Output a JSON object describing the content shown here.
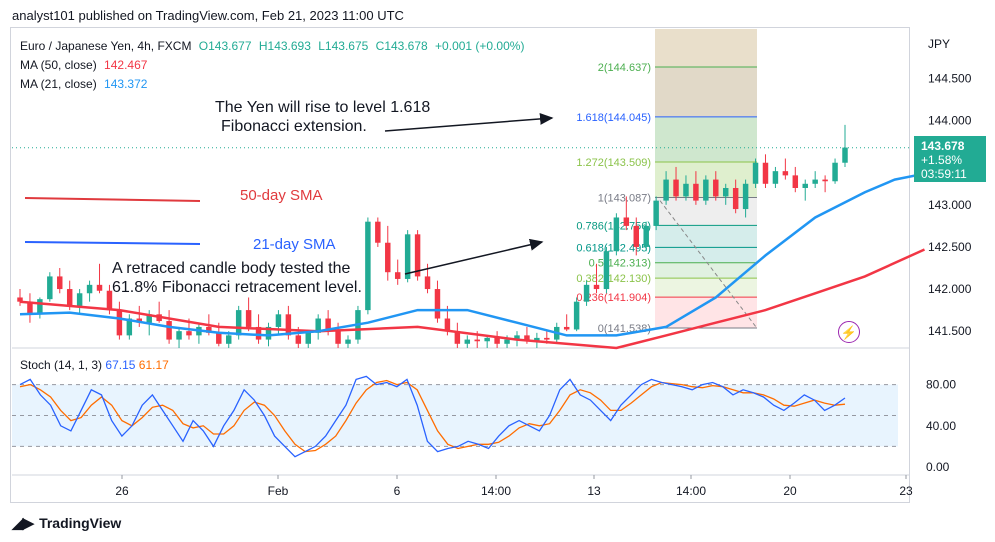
{
  "header": {
    "published_by": "analyst101 published on TradingView.com, Feb 21, 2023 11:00 UTC"
  },
  "legend": {
    "symbol": "Euro / Japanese Yen, 4h, FXCM",
    "open": "O143.677",
    "high": "H143.693",
    "low": "L143.675",
    "close": "C143.678",
    "change": "+0.001 (+0.00%)",
    "ma50_label": "MA (50, close)",
    "ma50_value": "142.467",
    "ma21_label": "MA (21, close)",
    "ma21_value": "143.372"
  },
  "stoch": {
    "label": "Stoch (14, 1, 3)",
    "k": "67.15",
    "d": "61.17"
  },
  "annotations": {
    "yen_rise": [
      "The Yen will rise to level 1.618",
      "Fibonacci extension."
    ],
    "retraced": [
      "A retraced candle body tested the",
      "61.8% Fibonacci retracement level."
    ],
    "sma50": "50-day SMA",
    "sma21": "21-day SMA"
  },
  "price_badge": {
    "price": "143.678",
    "change": "+1.58%",
    "countdown": "03:59:11"
  },
  "footer": {
    "brand": "TradingView"
  },
  "colors": {
    "up": "#22ab94",
    "down": "#f23645",
    "ma50": "#f23645",
    "ma21": "#2196f3",
    "stoch_k": "#2962ff",
    "stoch_d": "#ff6d00",
    "accent": "#9c27b0"
  },
  "chart_data": {
    "type": "candlestick",
    "currency_label": "JPY",
    "y_ticks": [
      "144.500",
      "144.000",
      "143.000",
      "142.500",
      "142.000",
      "141.500"
    ],
    "ylim": [
      141.3,
      145.1
    ],
    "x_ticks": [
      "26",
      "Feb",
      "6",
      "14:00",
      "13",
      "14:00",
      "20",
      "23"
    ],
    "fib_levels": [
      {
        "label": "2(144.637)",
        "ratio": 2,
        "value": 144.637,
        "color": "#4caf50"
      },
      {
        "label": "1.618(144.045)",
        "ratio": 1.618,
        "value": 144.045,
        "color": "#2962ff"
      },
      {
        "label": "1.272(143.509)",
        "ratio": 1.272,
        "value": 143.509,
        "color": "#8bc34a"
      },
      {
        "label": "1(143.087)",
        "ratio": 1,
        "value": 143.087,
        "color": "#787b86"
      },
      {
        "label": "0.786(142.756)",
        "ratio": 0.786,
        "value": 142.756,
        "color": "#089981"
      },
      {
        "label": "0.618(142.495)",
        "ratio": 0.618,
        "value": 142.495,
        "color": "#009688"
      },
      {
        "label": "0.5(142.313)",
        "ratio": 0.5,
        "value": 142.313,
        "color": "#4caf50"
      },
      {
        "label": "0.382(142.130)",
        "ratio": 0.382,
        "value": 142.13,
        "color": "#8bc34a"
      },
      {
        "label": "0.236(141.904)",
        "ratio": 0.236,
        "value": 141.904,
        "color": "#f23645"
      },
      {
        "label": "0(141.538)",
        "ratio": 0,
        "value": 141.538,
        "color": "#787b86"
      }
    ],
    "candles": [
      [
        141.9,
        142.0,
        141.8,
        141.85
      ],
      [
        141.85,
        141.95,
        141.6,
        141.7
      ],
      [
        141.7,
        141.9,
        141.65,
        141.88
      ],
      [
        141.88,
        142.2,
        141.85,
        142.15
      ],
      [
        142.15,
        142.25,
        141.95,
        142.0
      ],
      [
        142.0,
        142.1,
        141.75,
        141.8
      ],
      [
        141.8,
        142.0,
        141.7,
        141.95
      ],
      [
        141.95,
        142.1,
        141.85,
        142.05
      ],
      [
        142.05,
        142.3,
        141.95,
        141.98
      ],
      [
        141.98,
        142.05,
        141.7,
        141.75
      ],
      [
        141.75,
        141.85,
        141.4,
        141.45
      ],
      [
        141.45,
        141.7,
        141.4,
        141.65
      ],
      [
        141.65,
        141.8,
        141.55,
        141.6
      ],
      [
        141.6,
        141.75,
        141.45,
        141.7
      ],
      [
        141.7,
        141.85,
        141.6,
        141.62
      ],
      [
        141.62,
        141.75,
        141.35,
        141.4
      ],
      [
        141.4,
        141.55,
        141.3,
        141.5
      ],
      [
        141.5,
        141.65,
        141.4,
        141.45
      ],
      [
        141.45,
        141.6,
        141.35,
        141.55
      ],
      [
        141.55,
        141.7,
        141.45,
        141.48
      ],
      [
        141.48,
        141.6,
        141.32,
        141.35
      ],
      [
        141.35,
        141.5,
        141.3,
        141.45
      ],
      [
        141.45,
        141.8,
        141.4,
        141.75
      ],
      [
        141.75,
        141.9,
        141.5,
        141.55
      ],
      [
        141.55,
        141.7,
        141.35,
        141.4
      ],
      [
        141.4,
        141.6,
        141.32,
        141.55
      ],
      [
        141.55,
        141.75,
        141.45,
        141.7
      ],
      [
        141.7,
        141.8,
        141.4,
        141.45
      ],
      [
        141.45,
        141.55,
        141.3,
        141.35
      ],
      [
        141.35,
        141.5,
        141.3,
        141.48
      ],
      [
        141.48,
        141.7,
        141.4,
        141.65
      ],
      [
        141.65,
        141.75,
        141.45,
        141.5
      ],
      [
        141.5,
        141.6,
        141.3,
        141.35
      ],
      [
        141.35,
        141.45,
        141.3,
        141.4
      ],
      [
        141.4,
        141.8,
        141.35,
        141.75
      ],
      [
        141.75,
        142.85,
        141.7,
        142.8
      ],
      [
        142.8,
        142.85,
        142.5,
        142.55
      ],
      [
        142.55,
        142.75,
        142.1,
        142.2
      ],
      [
        142.2,
        142.35,
        142.05,
        142.12
      ],
      [
        142.12,
        142.7,
        142.08,
        142.65
      ],
      [
        142.65,
        142.7,
        142.1,
        142.15
      ],
      [
        142.15,
        142.3,
        141.95,
        142.0
      ],
      [
        142.0,
        142.1,
        141.6,
        141.65
      ],
      [
        141.65,
        141.8,
        141.45,
        141.5
      ],
      [
        141.5,
        141.6,
        141.3,
        141.35
      ],
      [
        141.35,
        141.45,
        141.3,
        141.4
      ],
      [
        141.4,
        141.5,
        141.3,
        141.38
      ],
      [
        141.38,
        141.45,
        141.3,
        141.42
      ],
      [
        141.42,
        141.5,
        141.3,
        141.35
      ],
      [
        141.35,
        141.45,
        141.3,
        141.4
      ],
      [
        141.4,
        141.5,
        141.32,
        141.45
      ],
      [
        141.45,
        141.55,
        141.35,
        141.38
      ],
      [
        141.38,
        141.48,
        141.3,
        141.42
      ],
      [
        141.42,
        141.5,
        141.35,
        141.4
      ],
      [
        141.4,
        141.6,
        141.35,
        141.55
      ],
      [
        141.55,
        141.7,
        141.5,
        141.52
      ],
      [
        141.52,
        141.9,
        141.5,
        141.85
      ],
      [
        141.85,
        142.1,
        141.8,
        142.05
      ],
      [
        142.05,
        142.3,
        141.95,
        142.0
      ],
      [
        142.0,
        142.5,
        141.95,
        142.45
      ],
      [
        142.45,
        142.9,
        142.4,
        142.85
      ],
      [
        142.85,
        143.1,
        142.7,
        142.75
      ],
      [
        142.75,
        142.85,
        142.4,
        142.5
      ],
      [
        142.5,
        142.8,
        142.45,
        142.75
      ],
      [
        142.75,
        143.1,
        142.7,
        143.05
      ],
      [
        143.05,
        143.4,
        143.0,
        143.3
      ],
      [
        143.3,
        143.45,
        143.05,
        143.1
      ],
      [
        143.1,
        143.35,
        143.05,
        143.25
      ],
      [
        143.25,
        143.4,
        143.0,
        143.05
      ],
      [
        143.05,
        143.35,
        143.0,
        143.3
      ],
      [
        143.3,
        143.4,
        143.05,
        143.1
      ],
      [
        143.1,
        143.25,
        143.0,
        143.2
      ],
      [
        143.2,
        143.3,
        142.9,
        142.95
      ],
      [
        142.95,
        143.3,
        142.85,
        143.25
      ],
      [
        143.25,
        143.55,
        143.2,
        143.5
      ],
      [
        143.5,
        143.6,
        143.2,
        143.25
      ],
      [
        143.25,
        143.45,
        143.2,
        143.4
      ],
      [
        143.4,
        143.55,
        143.3,
        143.35
      ],
      [
        143.35,
        143.45,
        143.15,
        143.2
      ],
      [
        143.2,
        143.3,
        143.05,
        143.25
      ],
      [
        143.25,
        143.4,
        143.2,
        143.3
      ],
      [
        143.3,
        143.35,
        143.15,
        143.28
      ],
      [
        143.28,
        143.55,
        143.25,
        143.5
      ],
      [
        143.5,
        143.95,
        143.45,
        143.68
      ]
    ],
    "ma21": [
      [
        0,
        141.7
      ],
      [
        5,
        141.72
      ],
      [
        10,
        141.65
      ],
      [
        15,
        141.55
      ],
      [
        20,
        141.48
      ],
      [
        25,
        141.45
      ],
      [
        30,
        141.5
      ],
      [
        35,
        141.6
      ],
      [
        40,
        141.75
      ],
      [
        45,
        141.75
      ],
      [
        50,
        141.6
      ],
      [
        55,
        141.45
      ],
      [
        60,
        141.45
      ],
      [
        65,
        141.55
      ],
      [
        70,
        141.9
      ],
      [
        75,
        142.4
      ],
      [
        80,
        142.85
      ],
      [
        85,
        143.15
      ],
      [
        88,
        143.3
      ],
      [
        91,
        143.37
      ]
    ],
    "ma50": [
      [
        0,
        141.85
      ],
      [
        10,
        141.75
      ],
      [
        20,
        141.55
      ],
      [
        30,
        141.5
      ],
      [
        40,
        141.55
      ],
      [
        50,
        141.4
      ],
      [
        60,
        141.3
      ],
      [
        65,
        141.45
      ],
      [
        70,
        141.6
      ],
      [
        75,
        141.75
      ],
      [
        80,
        141.95
      ],
      [
        85,
        142.15
      ],
      [
        91,
        142.47
      ]
    ],
    "stoch_k": [
      80,
      85,
      70,
      60,
      40,
      35,
      55,
      75,
      70,
      45,
      30,
      40,
      60,
      70,
      55,
      40,
      25,
      45,
      35,
      20,
      40,
      55,
      75,
      65,
      50,
      30,
      20,
      10,
      15,
      20,
      30,
      45,
      60,
      85,
      88,
      80,
      82,
      78,
      85,
      60,
      25,
      15,
      18,
      20,
      25,
      22,
      18,
      30,
      40,
      45,
      40,
      35,
      50,
      75,
      85,
      70,
      65,
      55,
      45,
      60,
      70,
      80,
      85,
      82,
      80,
      78,
      75,
      80,
      82,
      78,
      70,
      75,
      72,
      68,
      60,
      55,
      62,
      70,
      65,
      55,
      60,
      67
    ],
    "stoch_d": [
      78,
      80,
      75,
      68,
      55,
      45,
      48,
      60,
      68,
      60,
      45,
      40,
      48,
      58,
      60,
      55,
      42,
      38,
      40,
      32,
      32,
      40,
      55,
      63,
      60,
      50,
      35,
      22,
      15,
      16,
      22,
      30,
      45,
      62,
      75,
      82,
      84,
      80,
      82,
      75,
      55,
      35,
      22,
      18,
      20,
      22,
      22,
      24,
      30,
      38,
      42,
      40,
      42,
      55,
      70,
      75,
      72,
      65,
      55,
      55,
      62,
      70,
      78,
      82,
      81,
      80,
      78,
      77,
      79,
      78,
      75,
      72,
      72,
      70,
      66,
      60,
      59,
      62,
      65,
      62,
      60,
      61
    ],
    "stoch_ticks": [
      "80.00",
      "40.00",
      "0.00"
    ]
  }
}
